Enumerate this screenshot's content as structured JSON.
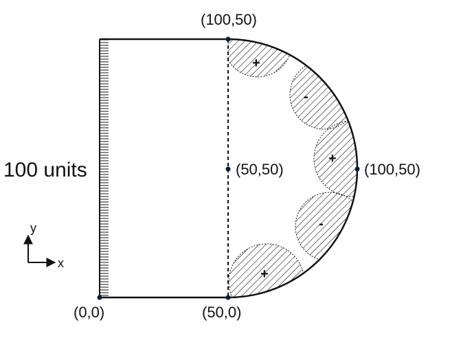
{
  "colors": {
    "ink": "#111111",
    "point": "#0d1b33",
    "background": "#ffffff"
  },
  "side_label": "100 units",
  "points": [
    {
      "id": "origin",
      "label": "(0,0)"
    },
    {
      "id": "bottom-mid",
      "label": "(50,0)"
    },
    {
      "id": "top-mid",
      "label": "(100,50)"
    },
    {
      "id": "center",
      "label": "(50,50)"
    },
    {
      "id": "right-tip",
      "label": "(100,50)"
    }
  ],
  "circles": [
    {
      "sign": "+"
    },
    {
      "sign": "-"
    },
    {
      "sign": "+"
    },
    {
      "sign": "-"
    },
    {
      "sign": "+"
    }
  ],
  "axes": {
    "x_label": "x",
    "y_label": "y"
  }
}
